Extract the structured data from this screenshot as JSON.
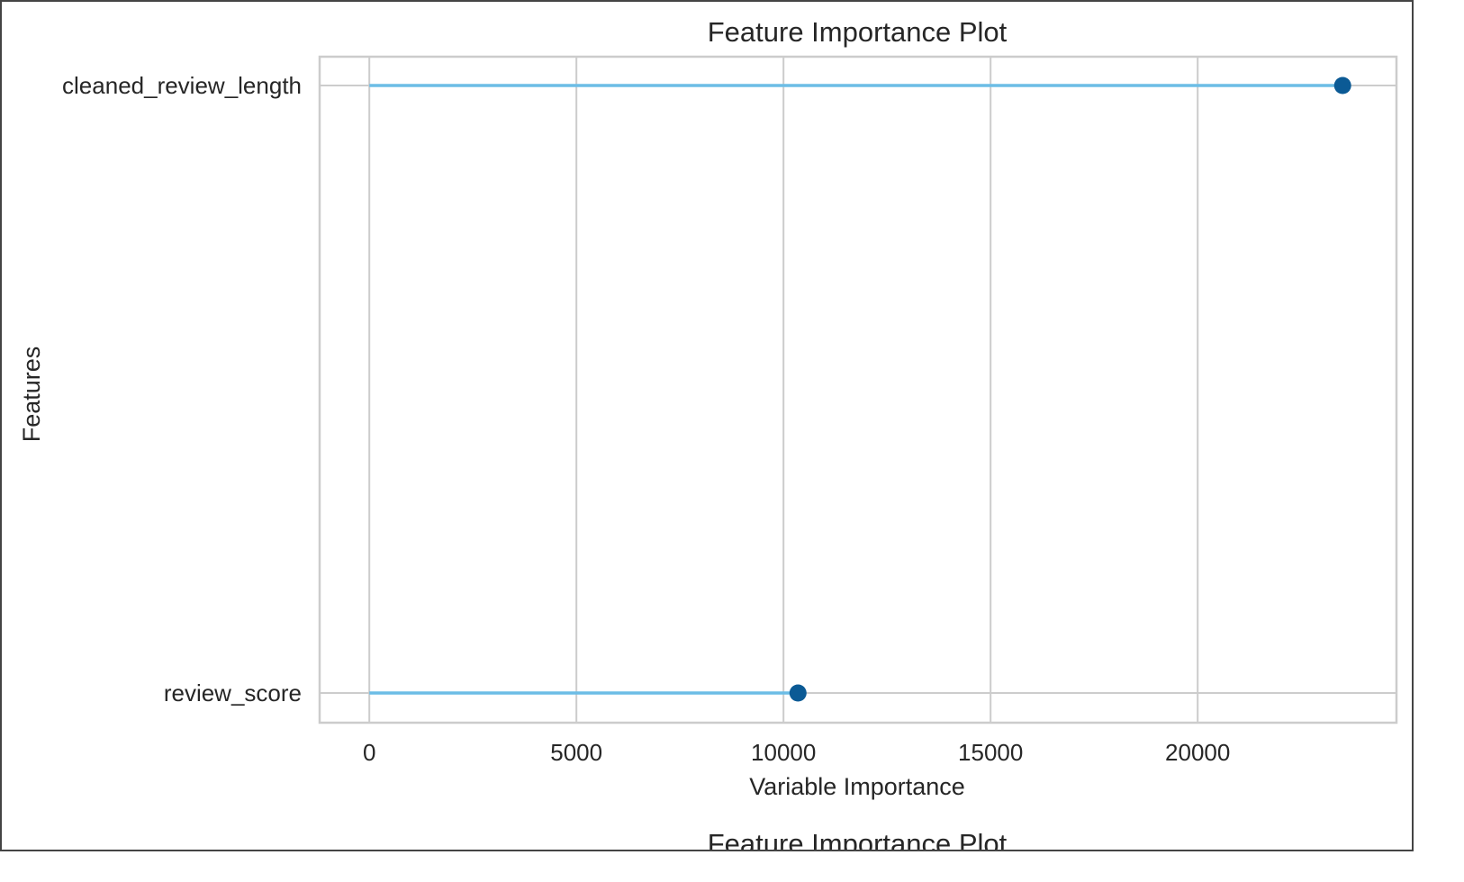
{
  "chart_data": {
    "type": "lollipop",
    "title": "Feature Importance Plot",
    "xlabel": "Variable Importance",
    "ylabel": "Features",
    "categories": [
      "cleaned_review_length",
      "review_score"
    ],
    "values": [
      23500,
      10350
    ],
    "xlim": [
      -1200,
      24800
    ],
    "xticks": [
      0,
      5000,
      10000,
      15000,
      20000
    ],
    "xtick_labels": [
      "0",
      "5000",
      "10000",
      "15000",
      "20000"
    ],
    "grid": true,
    "colors": {
      "stem": "#6cbde6",
      "marker": "#0b5a95",
      "grid": "#cccccc",
      "frame": "#cccccc"
    }
  },
  "next_title": "Feature Importance Plot"
}
